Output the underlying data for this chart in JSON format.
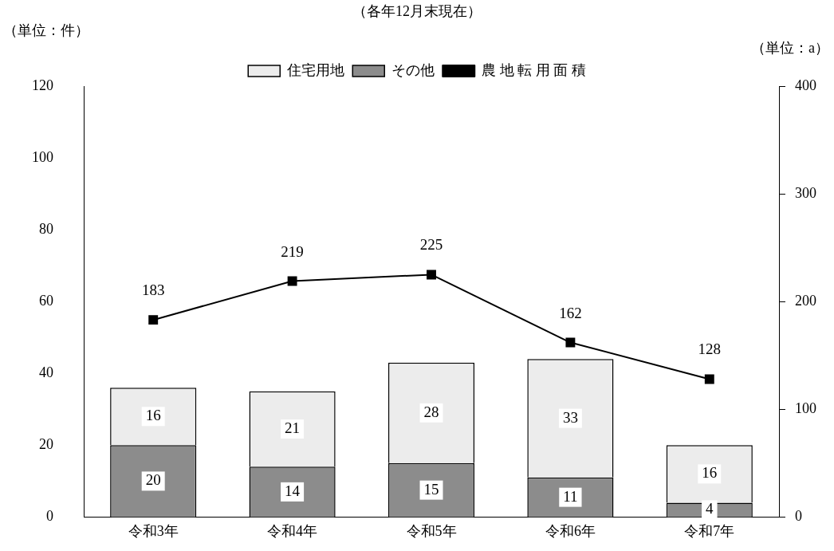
{
  "chart_data": {
    "type": "bar",
    "subtitle": "（各年12月末現在）",
    "ylabel": "（単位：件）",
    "y2label": "（単位：a）",
    "categories": [
      "令和3年",
      "令和4年",
      "令和5年",
      "令和6年",
      "令和7年"
    ],
    "stacked": true,
    "series": [
      {
        "name": "その他",
        "color": "#8c8c8c",
        "values": [
          20,
          14,
          15,
          11,
          4
        ]
      },
      {
        "name": "住宅用地",
        "color": "#ececec",
        "values": [
          16,
          21,
          28,
          33,
          16
        ]
      },
      {
        "name": "農 地 転 用 面 積",
        "type": "line",
        "axis": "y2",
        "color": "#000000",
        "values": [
          183,
          219,
          225,
          162,
          128
        ]
      }
    ],
    "ylim": [
      0,
      120
    ],
    "yticks": [
      0,
      20,
      40,
      60,
      80,
      100,
      120
    ],
    "y2lim": [
      0,
      400
    ],
    "y2ticks": [
      0,
      100,
      200,
      300,
      400
    ],
    "grid": false,
    "legend": "top",
    "marker": "square",
    "line_style": "solid",
    "data_labels": true
  }
}
